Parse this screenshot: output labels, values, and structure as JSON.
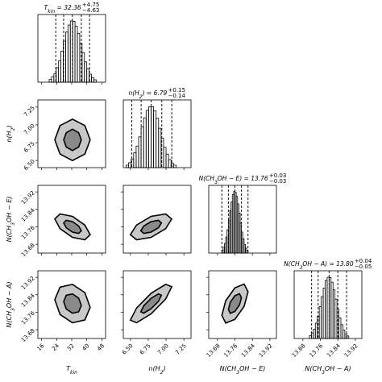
{
  "chart_data": {
    "type": "corner",
    "color": "#000000",
    "contour_fills": [
      "#c8c8c8",
      "#8a8a8a"
    ],
    "hist_ylim": [
      0,
      1100
    ],
    "params": [
      {
        "label": [
          {
            "text": "T"
          },
          {
            "text": "kin",
            "sub": true
          }
        ],
        "title": [
          {
            "text": "T"
          },
          {
            "text": "kin",
            "sub": true
          },
          {
            "text": " = 32.36"
          },
          {
            "text": "+4.75",
            "sup": true
          },
          {
            "text": "−4.63",
            "sub": true
          }
        ],
        "lim": [
          14,
          50
        ],
        "ticks": [
          16,
          24,
          32,
          40,
          48
        ],
        "bins": [
          20,
          21.25,
          22.5,
          23.75,
          25,
          26.25,
          27.5,
          28.75,
          30,
          31.25,
          32.5,
          33.75,
          35,
          36.25,
          37.5,
          38.75,
          40,
          41.25,
          42.5,
          43.75,
          45
        ],
        "counts": [
          44,
          89,
          135,
          236,
          349,
          504,
          667,
          815,
          930,
          995,
          989,
          912,
          794,
          631,
          481,
          330,
          220,
          130,
          74,
          39
        ],
        "quantiles": [
          23.5,
          27.7,
          32.36,
          37.1,
          41.5
        ]
      },
      {
        "label": [
          {
            "text": "n(H"
          },
          {
            "text": "2",
            "sub": true
          },
          {
            "text": ")"
          }
        ],
        "title": [
          {
            "text": "n(H"
          },
          {
            "text": "2",
            "sub": true
          },
          {
            "text": ") = 6.79"
          },
          {
            "text": "+0.15",
            "sup": true
          },
          {
            "text": "−0.14",
            "sub": true
          }
        ],
        "lim": [
          6.4,
          7.35
        ],
        "ticks": [
          {
            "value": 6.5,
            "label": "6.50"
          },
          6.75,
          {
            "value": 7,
            "label": "7.00"
          },
          7.25
        ],
        "bins": [
          6.44,
          6.475,
          6.51,
          6.545,
          6.58,
          6.615,
          6.65,
          6.685,
          6.72,
          6.755,
          6.79,
          6.825,
          6.86,
          6.895,
          6.93,
          6.965,
          7.0,
          7.035,
          7.07,
          7.105,
          7.14
        ],
        "counts": [
          40,
          80,
          140,
          240,
          350,
          500,
          660,
          810,
          930,
          990,
          990,
          920,
          800,
          640,
          480,
          330,
          220,
          130,
          70,
          40
        ],
        "quantiles": [
          6.52,
          6.65,
          6.79,
          6.94,
          7.08
        ]
      },
      {
        "label": [
          {
            "text": "N(CH"
          },
          {
            "text": "3",
            "sub": true
          },
          {
            "text": "OH − E)"
          }
        ],
        "title": [
          {
            "text": "N(CH"
          },
          {
            "text": "3",
            "sub": true
          },
          {
            "text": "OH − E) = 13.76"
          },
          {
            "text": "+0.03",
            "sup": true
          },
          {
            "text": "−0.03",
            "sub": true
          }
        ],
        "lim": [
          13.64,
          13.95
        ],
        "ticks": [
          13.68,
          13.76,
          13.84,
          13.92
        ],
        "bins": [
          13.7,
          13.706,
          13.712,
          13.718,
          13.724,
          13.73,
          13.736,
          13.742,
          13.748,
          13.754,
          13.76,
          13.766,
          13.772,
          13.778,
          13.784,
          13.79,
          13.796,
          13.802,
          13.808,
          13.814,
          13.82
        ],
        "counts": [
          50,
          95,
          160,
          260,
          380,
          530,
          690,
          830,
          950,
          1000,
          985,
          920,
          800,
          650,
          490,
          340,
          230,
          140,
          80,
          45
        ],
        "quantiles": [
          13.7,
          13.73,
          13.76,
          13.79,
          13.82
        ]
      },
      {
        "label": [
          {
            "text": "N(CH"
          },
          {
            "text": "3",
            "sub": true
          },
          {
            "text": "OH − A)"
          }
        ],
        "title": [
          {
            "text": "N(CH"
          },
          {
            "text": "3",
            "sub": true
          },
          {
            "text": "OH − A) = 13.80"
          },
          {
            "text": "+0.04",
            "sup": true
          },
          {
            "text": "−0.05",
            "sub": true
          }
        ],
        "lim": [
          13.64,
          13.95
        ],
        "ticks": [
          13.68,
          13.76,
          13.84,
          13.92
        ],
        "bins": [
          13.71,
          13.719,
          13.728,
          13.737,
          13.746,
          13.755,
          13.764,
          13.773,
          13.782,
          13.791,
          13.8,
          13.809,
          13.818,
          13.827,
          13.836,
          13.845,
          13.854,
          13.863,
          13.872,
          13.881,
          13.89
        ],
        "counts": [
          45,
          90,
          150,
          250,
          360,
          520,
          680,
          820,
          940,
          995,
          990,
          915,
          790,
          640,
          480,
          335,
          225,
          135,
          75,
          40
        ],
        "quantiles": [
          13.72,
          13.75,
          13.8,
          13.84,
          13.88
        ]
      }
    ],
    "pairs": [
      {
        "x_param": 0,
        "y_param": 1,
        "contours": [
          {
            "x": [
              41.8,
              39.0,
              32.4,
              25.8,
              23.0,
              25.8,
              32.4,
              39.0
            ],
            "y": [
              6.79,
              6.99,
              7.08,
              6.99,
              6.79,
              6.59,
              6.5,
              6.59
            ]
          },
          {
            "x": [
              37.1,
              35.7,
              32.4,
              29.1,
              27.7,
              29.1,
              32.4,
              35.7
            ],
            "y": [
              6.79,
              6.89,
              6.94,
              6.89,
              6.79,
              6.69,
              6.64,
              6.69
            ]
          }
        ]
      },
      {
        "x_param": 0,
        "y_param": 2,
        "contours": [
          {
            "x": [
              41.8,
              39.0,
              32.4,
              25.8,
              23.0,
              25.8,
              32.4,
              39.0
            ],
            "y": [
              13.724,
              13.768,
              13.808,
              13.819,
              13.796,
              13.752,
              13.712,
              13.701
            ]
          },
          {
            "x": [
              37.1,
              35.7,
              32.4,
              29.1,
              27.7,
              29.1,
              32.4,
              35.7
            ],
            "y": [
              13.742,
              13.764,
              13.784,
              13.79,
              13.778,
              13.756,
              13.736,
              13.73
            ]
          }
        ]
      },
      {
        "x_param": 1,
        "y_param": 2,
        "contours": [
          {
            "x": [
              7.08,
              6.995,
              6.79,
              6.585,
              6.5,
              6.585,
              6.79,
              6.995
            ],
            "y": [
              13.796,
              13.819,
              13.808,
              13.768,
              13.724,
              13.701,
              13.712,
              13.752
            ]
          },
          {
            "x": [
              6.935,
              6.893,
              6.79,
              6.687,
              6.645,
              6.687,
              6.79,
              6.893
            ],
            "y": [
              13.778,
              13.79,
              13.784,
              13.764,
              13.742,
              13.73,
              13.736,
              13.756
            ]
          }
        ]
      },
      {
        "x_param": 0,
        "y_param": 3,
        "contours": [
          {
            "x": [
              41.8,
              39.0,
              32.4,
              25.8,
              23.0,
              25.8,
              32.4,
              39.0
            ],
            "y": [
              13.782,
              13.85,
              13.888,
              13.875,
              13.818,
              13.75,
              13.712,
              13.725
            ]
          },
          {
            "x": [
              37.1,
              35.7,
              32.4,
              29.1,
              27.7,
              29.1,
              32.4,
              35.7
            ],
            "y": [
              13.791,
              13.825,
              13.844,
              13.838,
              13.809,
              13.775,
              13.756,
              13.762
            ]
          }
        ]
      },
      {
        "x_param": 1,
        "y_param": 3,
        "contours": [
          {
            "x": [
              7.08,
              6.995,
              6.79,
              6.585,
              6.5,
              6.585,
              6.79,
              6.995
            ],
            "y": [
              13.877,
              13.888,
              13.847,
              13.779,
              13.724,
              13.712,
              13.753,
              13.821
            ]
          },
          {
            "x": [
              6.935,
              6.893,
              6.79,
              6.687,
              6.645,
              6.687,
              6.79,
              6.893
            ],
            "y": [
              13.838,
              13.844,
              13.824,
              13.79,
              13.762,
              13.756,
              13.776,
              13.81
            ]
          }
        ]
      },
      {
        "x_param": 2,
        "y_param": 3,
        "contours": [
          {
            "x": [
              13.82,
              13.802,
              13.76,
              13.718,
              13.7,
              13.718,
              13.76,
              13.802
            ],
            "y": [
              13.854,
              13.889,
              13.872,
              13.813,
              13.746,
              13.711,
              13.728,
              13.787
            ]
          },
          {
            "x": [
              13.79,
              13.781,
              13.76,
              13.739,
              13.73,
              13.739,
              13.76,
              13.781
            ],
            "y": [
              13.827,
              13.845,
              13.836,
              13.806,
              13.773,
              13.755,
              13.764,
              13.794
            ]
          }
        ]
      }
    ]
  }
}
